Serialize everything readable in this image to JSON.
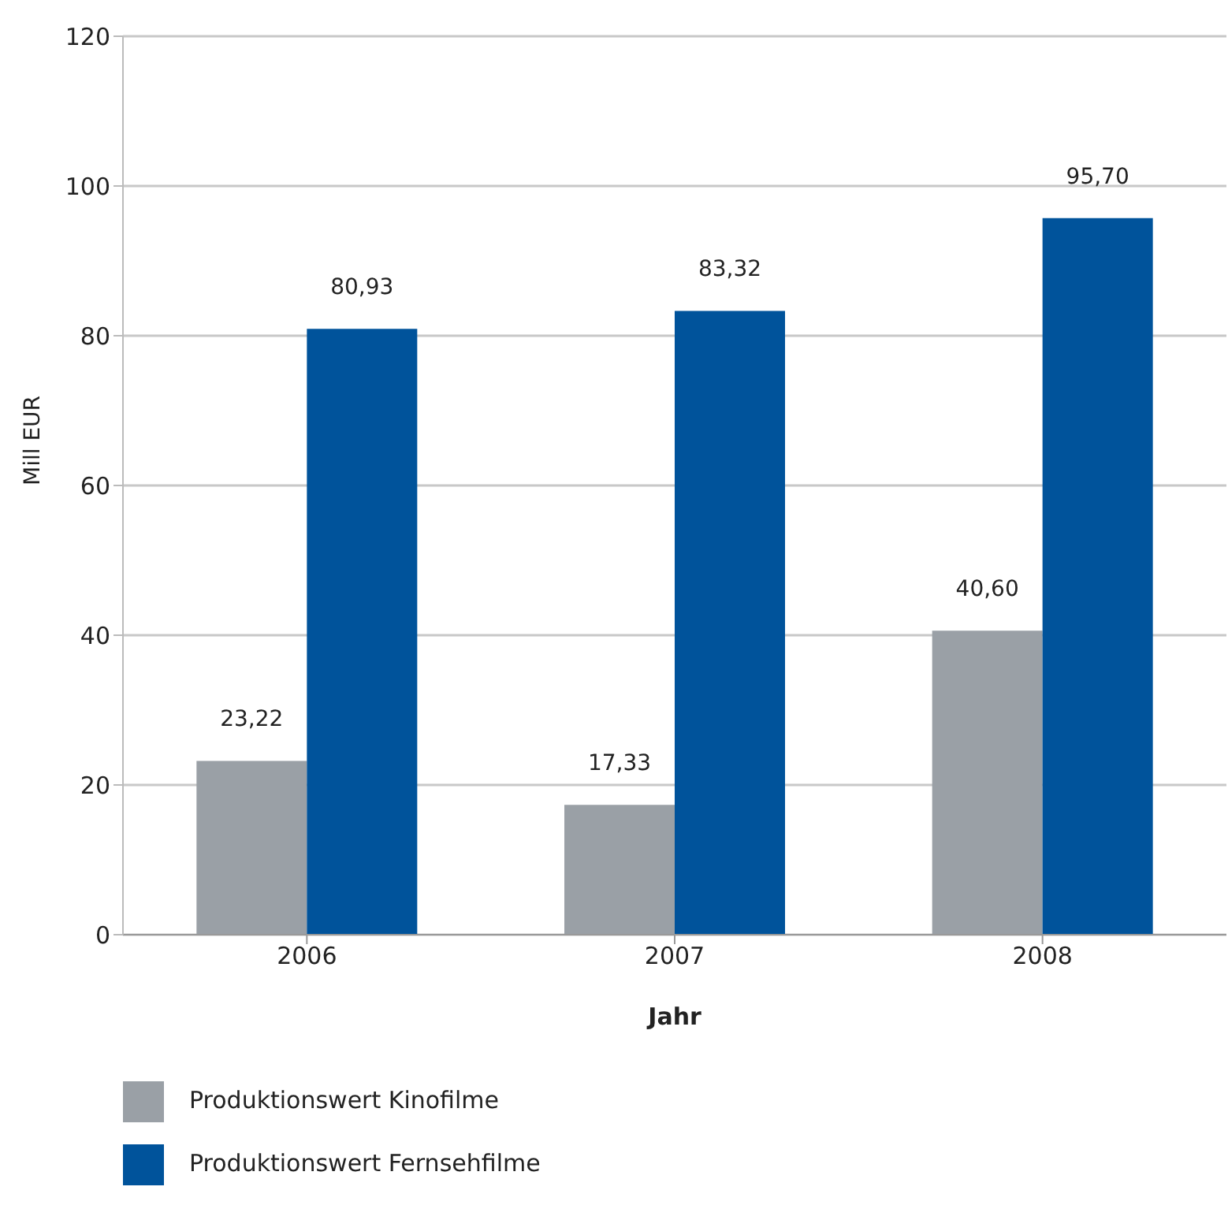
{
  "chart_data": {
    "type": "bar",
    "xlabel": "Jahr",
    "ylabel": "Mill EUR",
    "categories": [
      "2006",
      "2007",
      "2008"
    ],
    "series": [
      {
        "name": "Produktionswert Kinofilme",
        "color": "#9aa0a6",
        "values": [
          23.22,
          17.33,
          40.6
        ],
        "value_labels": [
          "23,22",
          "17,33",
          "40,60"
        ]
      },
      {
        "name": "Produktionswert Fernsehfilme",
        "color": "#00539b",
        "values": [
          80.93,
          83.32,
          95.7
        ],
        "value_labels": [
          "80,93",
          "83,32",
          "95,70"
        ]
      }
    ],
    "ylim": [
      0,
      120
    ],
    "yticks": [
      0,
      20,
      40,
      60,
      80,
      100,
      120
    ],
    "grid": "y",
    "legend": "bottom left"
  }
}
